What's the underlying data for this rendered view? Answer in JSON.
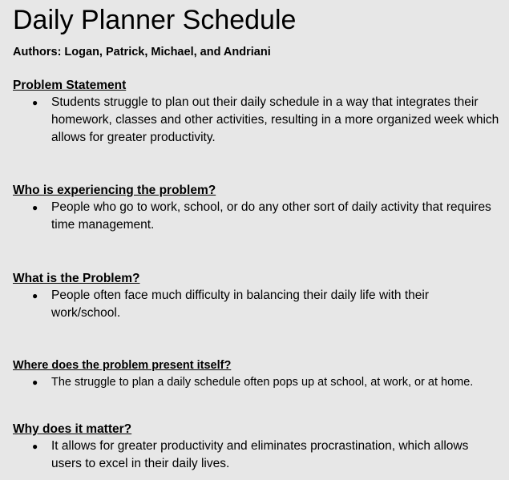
{
  "document": {
    "title": "Daily Planner Schedule",
    "authors": "Authors: Logan, Patrick, Michael, and Andriani"
  },
  "sections": [
    {
      "heading": "Problem Statement",
      "bullet": "Students struggle to plan out their daily schedule in a way that integrates their homework, classes and other activities, resulting in a more organized week which allows for greater productivity."
    },
    {
      "heading": "Who is experiencing the problem?",
      "bullet": "People who go to work, school, or do any other sort of daily activity that requires time management."
    },
    {
      "heading": "What is the Problem?",
      "bullet": "People often face much difficulty in balancing their daily life with their work/school."
    },
    {
      "heading": "Where does the problem present itself?",
      "bullet": "The struggle to plan a daily schedule often pops up at school, at work, or at home."
    },
    {
      "heading": "Why does it matter?",
      "bullet": "It allows for greater productivity and eliminates procrastination, which allows users to excel in their daily lives."
    }
  ],
  "bullet_glyph": "●"
}
